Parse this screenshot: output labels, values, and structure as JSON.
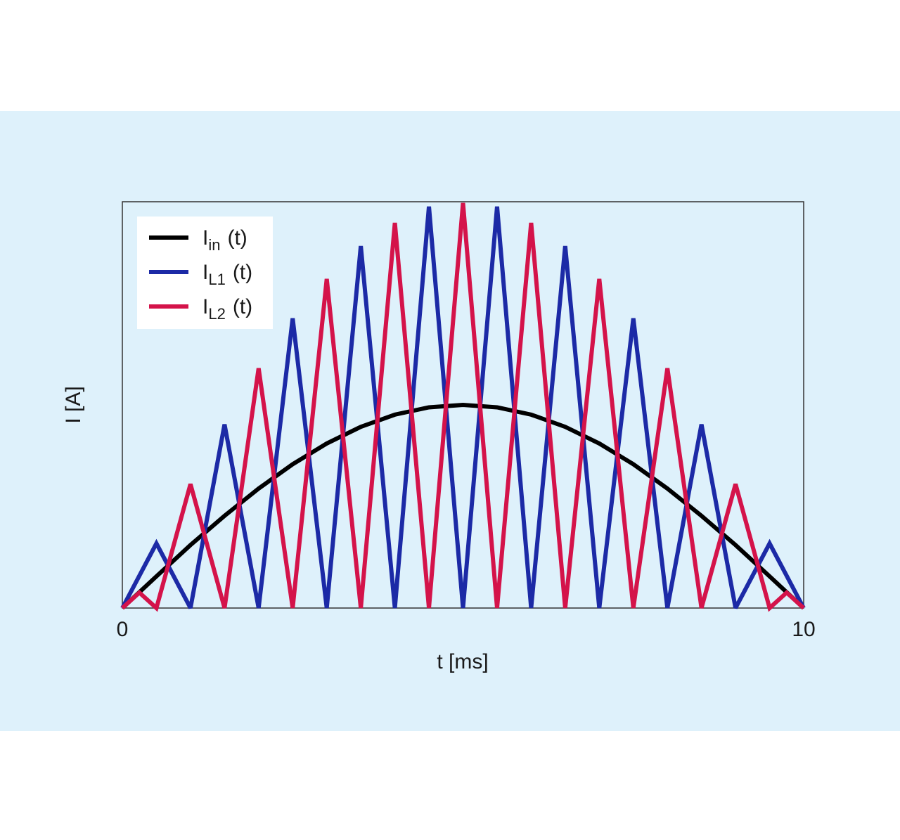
{
  "chart_data": {
    "type": "line",
    "x_label": "t [ms]",
    "y_label": "I [A]",
    "xlim": [
      0,
      10
    ],
    "xticks": [
      0,
      10
    ],
    "ylim": [
      0,
      10
    ],
    "legend": "upper left",
    "series": [
      {
        "name": {
          "main": "I",
          "sub": "in",
          "rest": "(t)"
        },
        "color": "#000000",
        "x": [
          0,
          0.5,
          1,
          1.5,
          2,
          2.5,
          3,
          3.5,
          4,
          4.5,
          5,
          5.5,
          6,
          6.5,
          7,
          7.5,
          8,
          8.5,
          9,
          9.5,
          10
        ],
        "values": [
          0,
          0.78,
          1.55,
          2.27,
          2.94,
          3.54,
          4.05,
          4.46,
          4.76,
          4.94,
          5,
          4.94,
          4.76,
          4.46,
          4.05,
          3.54,
          2.94,
          2.27,
          1.55,
          0.78,
          0
        ]
      },
      {
        "name": {
          "main": "I",
          "sub": "L1",
          "rest": "(t)"
        },
        "color": "#1c2aa6",
        "x": [
          0,
          0.5,
          1,
          1.5,
          2,
          2.5,
          3,
          3.5,
          4,
          4.5,
          5,
          5.5,
          6,
          6.5,
          7,
          7.5,
          8,
          8.5,
          9,
          9.5,
          10
        ],
        "values": [
          0,
          1.59,
          0,
          4.52,
          0,
          7.13,
          0,
          8.91,
          0,
          9.88,
          0,
          9.88,
          0,
          8.91,
          0,
          7.13,
          0,
          4.52,
          0,
          1.59,
          0
        ]
      },
      {
        "name": {
          "main": "I",
          "sub": "L2",
          "rest": "(t)"
        },
        "color": "#d4134a",
        "x": [
          0,
          0.25,
          0.5,
          1,
          1.5,
          2,
          2.5,
          3,
          3.5,
          4,
          4.5,
          5,
          5.5,
          6,
          6.5,
          7,
          7.5,
          8,
          8.5,
          9,
          9.5,
          9.75,
          10
        ],
        "values": [
          0,
          0.38,
          0,
          3.05,
          0,
          5.9,
          0,
          8.1,
          0,
          9.48,
          0,
          9.97,
          0,
          9.48,
          0,
          8.1,
          0,
          5.9,
          0,
          3.05,
          0,
          0.38,
          0
        ]
      }
    ]
  }
}
